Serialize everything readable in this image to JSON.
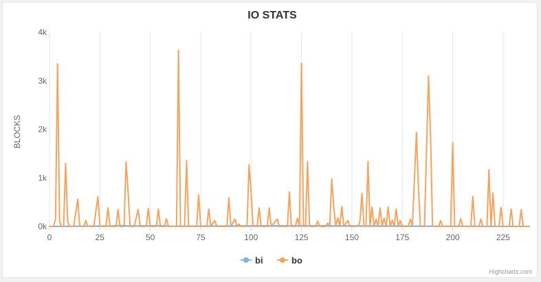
{
  "chart_data": {
    "type": "line",
    "title": "IO STATS",
    "xlabel": "",
    "ylabel": "BLOCKS",
    "xlim": [
      0,
      238
    ],
    "ylim": [
      0,
      4000
    ],
    "x_ticks": [
      0,
      25,
      50,
      75,
      100,
      125,
      150,
      175,
      200,
      225
    ],
    "y_ticks": [
      0,
      1000,
      2000,
      3000,
      4000
    ],
    "y_tick_labels": [
      "0k",
      "1k",
      "2k",
      "3k",
      "4k"
    ],
    "grid": "vertical",
    "legend": "bottom-center",
    "series": [
      {
        "name": "bi",
        "color": "#7cb5ec",
        "points": [
          [
            0,
            0
          ],
          [
            30,
            10
          ],
          [
            35,
            20
          ],
          [
            40,
            10
          ],
          [
            55,
            15
          ],
          [
            60,
            5
          ],
          [
            90,
            10
          ],
          [
            120,
            15
          ],
          [
            238,
            0
          ]
        ]
      },
      {
        "name": "bo",
        "color": "#f7a35c",
        "points": [
          [
            0,
            0
          ],
          [
            2,
            0
          ],
          [
            3,
            150
          ],
          [
            4,
            3350
          ],
          [
            5,
            100
          ],
          [
            6,
            0
          ],
          [
            7,
            0
          ],
          [
            8,
            1300
          ],
          [
            9,
            100
          ],
          [
            10,
            0
          ],
          [
            12,
            0
          ],
          [
            14,
            560
          ],
          [
            15,
            0
          ],
          [
            17,
            0
          ],
          [
            18,
            120
          ],
          [
            19,
            0
          ],
          [
            22,
            0
          ],
          [
            24,
            610
          ],
          [
            25,
            0
          ],
          [
            28,
            0
          ],
          [
            29,
            380
          ],
          [
            30,
            0
          ],
          [
            33,
            0
          ],
          [
            34,
            350
          ],
          [
            35,
            0
          ],
          [
            37,
            0
          ],
          [
            38,
            1330
          ],
          [
            39,
            700
          ],
          [
            40,
            0
          ],
          [
            42,
            0
          ],
          [
            44,
            350
          ],
          [
            45,
            0
          ],
          [
            48,
            0
          ],
          [
            49,
            370
          ],
          [
            50,
            0
          ],
          [
            53,
            0
          ],
          [
            54,
            360
          ],
          [
            55,
            0
          ],
          [
            57,
            0
          ],
          [
            58,
            160
          ],
          [
            59,
            0
          ],
          [
            63,
            0
          ],
          [
            64,
            3630
          ],
          [
            65,
            0
          ],
          [
            67,
            0
          ],
          [
            68,
            1360
          ],
          [
            69,
            0
          ],
          [
            73,
            0
          ],
          [
            74,
            650
          ],
          [
            75,
            0
          ],
          [
            78,
            0
          ],
          [
            79,
            360
          ],
          [
            80,
            0
          ],
          [
            82,
            120
          ],
          [
            83,
            0
          ],
          [
            88,
            0
          ],
          [
            89,
            590
          ],
          [
            90,
            0
          ],
          [
            92,
            150
          ],
          [
            93,
            0
          ],
          [
            94,
            50
          ],
          [
            95,
            0
          ],
          [
            98,
            0
          ],
          [
            99,
            1270
          ],
          [
            100,
            700
          ],
          [
            101,
            0
          ],
          [
            103,
            0
          ],
          [
            104,
            380
          ],
          [
            105,
            0
          ],
          [
            108,
            0
          ],
          [
            109,
            380
          ],
          [
            110,
            0
          ],
          [
            113,
            150
          ],
          [
            114,
            0
          ],
          [
            118,
            0
          ],
          [
            119,
            710
          ],
          [
            120,
            0
          ],
          [
            122,
            0
          ],
          [
            123,
            170
          ],
          [
            124,
            0
          ],
          [
            125,
            3360
          ],
          [
            126,
            0
          ],
          [
            127,
            0
          ],
          [
            128,
            1340
          ],
          [
            129,
            0
          ],
          [
            132,
            0
          ],
          [
            133,
            110
          ],
          [
            134,
            0
          ],
          [
            137,
            0
          ],
          [
            138,
            70
          ],
          [
            139,
            0
          ],
          [
            140,
            980
          ],
          [
            141,
            400
          ],
          [
            142,
            0
          ],
          [
            143,
            180
          ],
          [
            144,
            0
          ],
          [
            145,
            410
          ],
          [
            146,
            0
          ],
          [
            148,
            120
          ],
          [
            149,
            0
          ],
          [
            153,
            0
          ],
          [
            154,
            100
          ],
          [
            155,
            680
          ],
          [
            156,
            0
          ],
          [
            157,
            0
          ],
          [
            158,
            1340
          ],
          [
            159,
            0
          ],
          [
            160,
            400
          ],
          [
            161,
            0
          ],
          [
            162,
            150
          ],
          [
            163,
            0
          ],
          [
            164,
            380
          ],
          [
            165,
            0
          ],
          [
            166,
            170
          ],
          [
            167,
            0
          ],
          [
            168,
            400
          ],
          [
            169,
            0
          ],
          [
            170,
            130
          ],
          [
            171,
            0
          ],
          [
            172,
            360
          ],
          [
            173,
            0
          ],
          [
            174,
            120
          ],
          [
            175,
            0
          ],
          [
            178,
            0
          ],
          [
            179,
            150
          ],
          [
            180,
            0
          ],
          [
            182,
            1940
          ],
          [
            183,
            800
          ],
          [
            184,
            0
          ],
          [
            186,
            0
          ],
          [
            188,
            3100
          ],
          [
            189,
            1900
          ],
          [
            190,
            0
          ],
          [
            193,
            0
          ],
          [
            194,
            120
          ],
          [
            195,
            0
          ],
          [
            199,
            0
          ],
          [
            200,
            1730
          ],
          [
            201,
            0
          ],
          [
            203,
            0
          ],
          [
            204,
            160
          ],
          [
            205,
            0
          ],
          [
            209,
            0
          ],
          [
            210,
            620
          ],
          [
            211,
            0
          ],
          [
            213,
            0
          ],
          [
            214,
            150
          ],
          [
            215,
            0
          ],
          [
            217,
            0
          ],
          [
            218,
            1170
          ],
          [
            219,
            0
          ],
          [
            220,
            690
          ],
          [
            221,
            0
          ],
          [
            223,
            0
          ],
          [
            224,
            390
          ],
          [
            225,
            0
          ],
          [
            228,
            0
          ],
          [
            229,
            360
          ],
          [
            230,
            0
          ],
          [
            233,
            0
          ],
          [
            234,
            350
          ],
          [
            235,
            0
          ],
          [
            238,
            0
          ]
        ]
      }
    ],
    "credits": "Highcharts.com"
  }
}
